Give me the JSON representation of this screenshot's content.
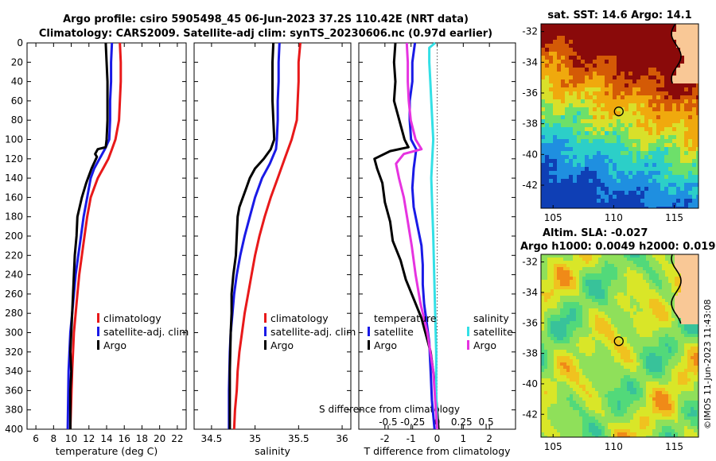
{
  "titles": {
    "line1": "Argo profile: csiro 5905498_45 06-Jun-2023 37.2S 110.42E (NRT data)",
    "line2": "Climatology: CARS2009. Satellite-adj clim: synTS_20230606.nc (0.97d earlier)"
  },
  "side_text": "©IMOS 11-Jun-2023 11:43:08",
  "colors": {
    "climatology": "#e8191a",
    "satellite": "#1a1ae6",
    "argo": "#000000",
    "sal_satellite": "#33e0e6",
    "sal_argo": "#e633e0"
  },
  "depth_axis": {
    "range": [
      0,
      400
    ],
    "ticks": [
      "0",
      "20",
      "40",
      "60",
      "80",
      "100",
      "120",
      "140",
      "160",
      "180",
      "200",
      "220",
      "240",
      "260",
      "280",
      "300",
      "320",
      "340",
      "360",
      "380",
      "400"
    ]
  },
  "chart_data": [
    {
      "type": "line",
      "name": "temperature",
      "xlabel": "temperature (deg C)",
      "xlim": [
        5,
        23
      ],
      "xticks": [
        "6",
        "8",
        "10",
        "12",
        "14",
        "16",
        "18",
        "20",
        "22"
      ],
      "legend": [
        "climatology",
        "satellite-adj. clim",
        "Argo"
      ],
      "series": [
        {
          "name": "climatology",
          "x": [
            15.5,
            15.6,
            15.6,
            15.5,
            15.4,
            15.0,
            14.6,
            14.2,
            13.6,
            13.0,
            12.6,
            12.2,
            11.8,
            11.5,
            11.2,
            10.9,
            10.7,
            10.5,
            10.3,
            10.1,
            9.9
          ],
          "depth": [
            0,
            20,
            40,
            60,
            80,
            100,
            110,
            120,
            130,
            140,
            150,
            160,
            180,
            200,
            220,
            240,
            260,
            280,
            300,
            340,
            400
          ]
        },
        {
          "name": "satellite-adj. clim",
          "x": [
            14.6,
            14.5,
            14.5,
            14.4,
            14.4,
            14.3,
            13.8,
            13.2,
            12.6,
            12.2,
            11.8,
            11.4,
            11.1,
            10.8,
            10.5,
            10.3,
            10.1,
            9.9,
            9.7,
            9.6
          ],
          "depth": [
            0,
            20,
            40,
            60,
            80,
            100,
            110,
            120,
            130,
            140,
            160,
            180,
            200,
            220,
            240,
            260,
            280,
            300,
            340,
            400
          ]
        },
        {
          "name": "Argo",
          "x": [
            13.9,
            14.0,
            14.1,
            14.1,
            14.1,
            14.0,
            13.9,
            13.0,
            12.7,
            12.9,
            12.3,
            11.7,
            11.2,
            10.7,
            10.6,
            10.4,
            10.3,
            10.2,
            10.1,
            10.0,
            9.9,
            10.0,
            9.9,
            9.9,
            9.9
          ],
          "depth": [
            0,
            20,
            40,
            60,
            80,
            100,
            108,
            110,
            115,
            118,
            130,
            145,
            160,
            180,
            200,
            220,
            240,
            260,
            280,
            300,
            320,
            340,
            360,
            380,
            400
          ]
        }
      ]
    },
    {
      "type": "line",
      "name": "salinity",
      "xlabel": "salinity",
      "xlim": [
        34.3,
        36.1
      ],
      "xticks": [
        "34.5",
        "35",
        "35.5",
        "36"
      ],
      "legend": [
        "climatology",
        "satellite-adj. clim",
        "Argo"
      ],
      "series": [
        {
          "name": "climatology",
          "x": [
            35.52,
            35.5,
            35.5,
            35.49,
            35.48,
            35.42,
            35.34,
            35.26,
            35.18,
            35.11,
            35.05,
            35.0,
            34.96,
            34.92,
            34.88,
            34.85,
            34.82,
            34.8,
            34.79,
            34.77,
            34.76
          ],
          "depth": [
            0,
            20,
            40,
            60,
            80,
            100,
            120,
            140,
            160,
            180,
            200,
            220,
            240,
            260,
            280,
            300,
            320,
            340,
            360,
            380,
            400
          ]
        },
        {
          "name": "satellite-adj. clim",
          "x": [
            35.28,
            35.27,
            35.27,
            35.26,
            35.26,
            35.25,
            35.24,
            35.17,
            35.08,
            35.0,
            34.94,
            34.88,
            34.83,
            34.79,
            34.76,
            34.74,
            34.72,
            34.71,
            34.7,
            34.7
          ],
          "depth": [
            0,
            20,
            40,
            60,
            80,
            100,
            110,
            125,
            140,
            160,
            180,
            200,
            220,
            240,
            260,
            280,
            300,
            320,
            360,
            400
          ]
        },
        {
          "name": "Argo",
          "x": [
            35.21,
            35.2,
            35.2,
            35.2,
            35.21,
            35.22,
            35.18,
            35.1,
            35.0,
            34.94,
            34.9,
            34.86,
            34.82,
            34.8,
            34.79,
            34.78,
            34.75,
            34.73,
            34.73,
            34.72,
            34.71,
            34.71
          ],
          "depth": [
            0,
            20,
            40,
            60,
            80,
            100,
            110,
            120,
            130,
            140,
            150,
            160,
            170,
            180,
            200,
            220,
            240,
            260,
            280,
            300,
            340,
            400
          ]
        }
      ]
    },
    {
      "type": "line",
      "name": "differences",
      "xlabel": "T difference from climatology",
      "xlabel_top": "S difference from climatology",
      "xlim": [
        -3,
        3
      ],
      "xticks": [
        "-2",
        "-1",
        "0",
        "1",
        "2"
      ],
      "s_xlim": [
        -0.8,
        0.8
      ],
      "s_xticks": [
        "-0.5",
        "-0.25",
        "0",
        "0.25",
        "0.5"
      ],
      "legend_groups": [
        {
          "title": "temperature",
          "items": [
            "satellite",
            "Argo"
          ]
        },
        {
          "title": "salinity",
          "items": [
            "satellite",
            "Argo"
          ]
        }
      ],
      "series": [
        {
          "name": "T satellite",
          "axis": "T",
          "x": [
            -0.85,
            -0.95,
            -0.95,
            -1.05,
            -1.05,
            -1.0,
            -0.8,
            -0.9,
            -0.95,
            -0.9,
            -0.75,
            -0.6,
            -0.55,
            -0.55,
            -0.5,
            -0.4,
            -0.3,
            -0.25,
            -0.2,
            -0.1
          ],
          "depth": [
            0,
            20,
            40,
            60,
            80,
            100,
            110,
            130,
            150,
            170,
            190,
            210,
            230,
            250,
            270,
            290,
            310,
            340,
            370,
            400
          ]
        },
        {
          "name": "T Argo",
          "axis": "T",
          "x": [
            -1.6,
            -1.65,
            -1.6,
            -1.65,
            -1.45,
            -1.25,
            -1.1,
            -1.8,
            -2.4,
            -2.3,
            -2.1,
            -2.0,
            -1.8,
            -1.7,
            -1.4,
            -1.2,
            -0.9,
            -0.6,
            -0.45,
            -0.25,
            -0.1,
            0.0,
            0.05
          ],
          "depth": [
            0,
            20,
            40,
            60,
            80,
            100,
            108,
            112,
            120,
            130,
            145,
            165,
            185,
            205,
            225,
            245,
            265,
            285,
            300,
            320,
            350,
            380,
            400
          ]
        },
        {
          "name": "S satellite",
          "axis": "S",
          "x": [
            -0.02,
            -0.08,
            -0.08,
            -0.07,
            -0.06,
            -0.05,
            -0.04,
            -0.05,
            -0.06,
            -0.05,
            -0.04,
            -0.03,
            -0.02,
            -0.01,
            -0.01,
            0.0
          ],
          "depth": [
            0,
            5,
            20,
            40,
            60,
            80,
            100,
            120,
            140,
            170,
            200,
            240,
            280,
            320,
            360,
            400
          ]
        },
        {
          "name": "S Argo",
          "axis": "S",
          "x": [
            -0.31,
            -0.3,
            -0.3,
            -0.29,
            -0.27,
            -0.22,
            -0.16,
            -0.34,
            -0.42,
            -0.39,
            -0.34,
            -0.3,
            -0.26,
            -0.22,
            -0.17,
            -0.1,
            -0.04,
            0.0
          ],
          "depth": [
            0,
            20,
            40,
            60,
            80,
            100,
            110,
            115,
            125,
            140,
            160,
            185,
            210,
            240,
            270,
            300,
            340,
            400
          ]
        }
      ]
    },
    {
      "type": "heatmap",
      "name": "sst_map",
      "title": "sat. SST: 14.6 Argo: 14.1",
      "xlim": [
        104,
        117
      ],
      "ylim": [
        -43.5,
        -31.5
      ],
      "xticks": [
        "105",
        "110",
        "115"
      ],
      "yticks": [
        "-32",
        "-34",
        "-36",
        "-38",
        "-40",
        "-42"
      ],
      "argo_position": {
        "lon": 110.42,
        "lat": -37.2
      }
    },
    {
      "type": "heatmap",
      "name": "sla_map",
      "title_line1": "Altim. SLA: -0.027",
      "title_line2": "Argo h1000: 0.0049 h2000: 0.019",
      "xlim": [
        104,
        117
      ],
      "ylim": [
        -43.5,
        -31.5
      ],
      "xticks": [
        "105",
        "110",
        "115"
      ],
      "yticks": [
        "-32",
        "-34",
        "-36",
        "-38",
        "-40",
        "-42"
      ],
      "argo_position": {
        "lon": 110.42,
        "lat": -37.2
      }
    }
  ]
}
